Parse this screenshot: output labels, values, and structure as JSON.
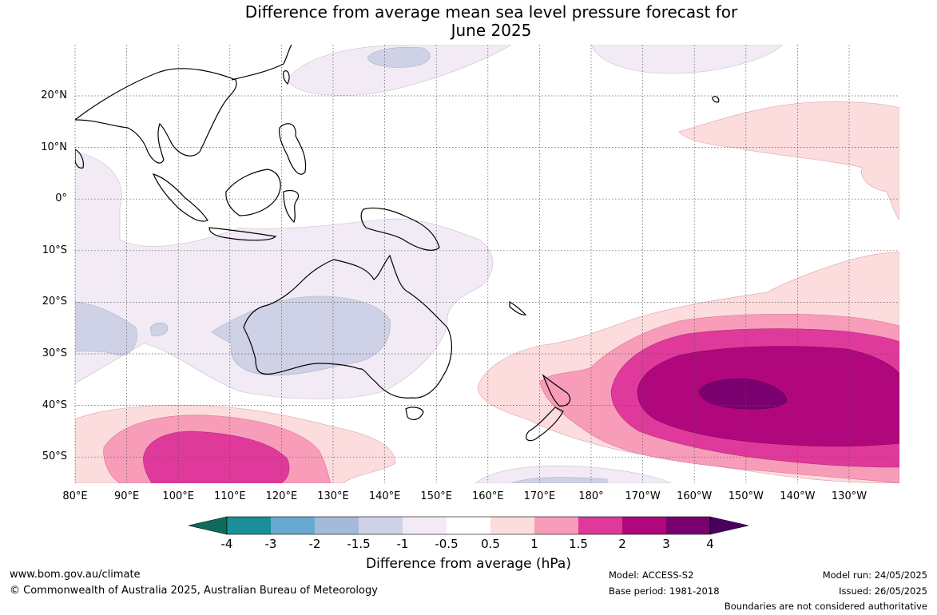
{
  "title_line1": "Difference from average mean sea level pressure forecast for",
  "title_line2": "June 2025",
  "lat_labels": [
    "20°N",
    "10°N",
    "0°",
    "10°S",
    "20°S",
    "30°S",
    "40°S",
    "50°S"
  ],
  "lon_labels": [
    "80°E",
    "90°E",
    "100°E",
    "110°E",
    "120°E",
    "130°E",
    "140°E",
    "150°E",
    "160°E",
    "170°E",
    "180°",
    "170°W",
    "160°W",
    "150°W",
    "140°W",
    "130°W"
  ],
  "colorbar": {
    "ticks": [
      "-4",
      "-3",
      "-2",
      "-1.5",
      "-1",
      "-0.5",
      "0.5",
      "1",
      "1.5",
      "2",
      "3",
      "4"
    ],
    "colors": [
      "#0e6b5c",
      "#1a8f97",
      "#67a9d1",
      "#a5b9d8",
      "#cfd2e6",
      "#f2eaf4",
      "#ffffff",
      "#fcdcdd",
      "#f79db9",
      "#df3a9b",
      "#b0077d",
      "#7a0070",
      "#4b0060"
    ],
    "label": "Difference from average (hPa)"
  },
  "footer": {
    "website": "www.bom.gov.au/climate",
    "copyright": "© Commonwealth of Australia 2025, Australian Bureau of Meteorology",
    "model": "Model: ACCESS-S2",
    "base_period": "Base period: 1981-2018",
    "model_run": "Model run: 24/05/2025",
    "issued": "Issued: 26/05/2025",
    "disclaimer": "Boundaries are not considered authoritative"
  }
}
